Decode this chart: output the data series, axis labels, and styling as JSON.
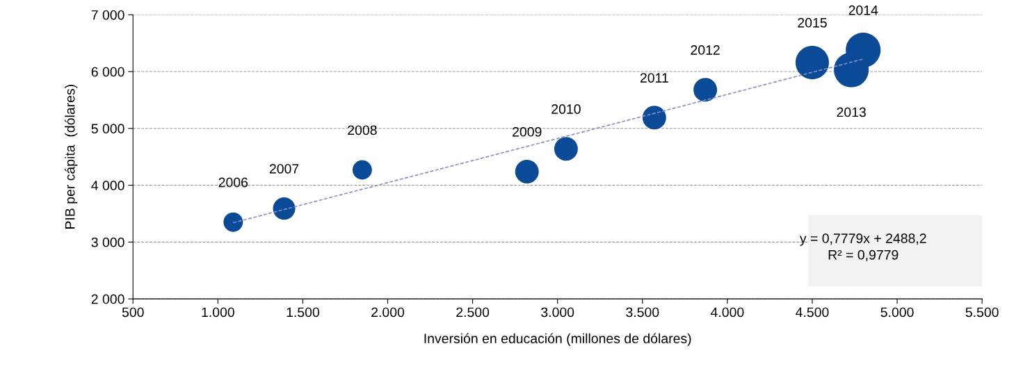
{
  "chart_data": {
    "type": "bubble",
    "xlabel": "Inversión en educación (millones de dólares)",
    "ylabel": "PIB per cápita  (dólares)",
    "xlim": [
      500,
      5500
    ],
    "xticks": [
      {
        "value": 500,
        "label": "500"
      },
      {
        "value": 1000,
        "label": "1.000"
      },
      {
        "value": 1500,
        "label": "1.500"
      },
      {
        "value": 2000,
        "label": "2.000"
      },
      {
        "value": 2500,
        "label": "2.500"
      },
      {
        "value": 3000,
        "label": "3.000"
      },
      {
        "value": 3500,
        "label": "3.500"
      },
      {
        "value": 4000,
        "label": "4.000"
      },
      {
        "value": 4500,
        "label": "4.500"
      },
      {
        "value": 5000,
        "label": "5.000"
      },
      {
        "value": 5500,
        "label": "5.500"
      }
    ],
    "ylim": [
      2000,
      7000
    ],
    "yticks": [
      {
        "value": 2000,
        "label": "2 000"
      },
      {
        "value": 3000,
        "label": "3 000"
      },
      {
        "value": 4000,
        "label": "4 000"
      },
      {
        "value": 5000,
        "label": "5 000"
      },
      {
        "value": 6000,
        "label": "6 000"
      },
      {
        "value": 7000,
        "label": "7 000"
      }
    ],
    "grid": "y",
    "series": [
      {
        "color": "#0a4a96",
        "x": [
          1090,
          1390,
          1850,
          2820,
          3050,
          3570,
          3870,
          4730,
          4800,
          4500
        ],
        "values": [
          3350,
          3590,
          4270,
          4240,
          4640,
          5190,
          5680,
          6030,
          6380,
          6160
        ],
        "sizes": [
          0.31,
          0.41,
          0.31,
          0.46,
          0.46,
          0.46,
          0.46,
          1,
          1,
          0.92
        ]
      },
      {
        "type": "line",
        "color": "#8a8fc8",
        "line_style": "dashed",
        "x": [
          1090,
          4800
        ],
        "values": [
          3340,
          6220
        ]
      }
    ],
    "annotations": [
      {
        "text": "2006",
        "x": 1090,
        "y": 3350
      },
      {
        "text": "2007",
        "x": 1390,
        "y": 3590
      },
      {
        "text": "2008",
        "x": 1850,
        "y": 4270
      },
      {
        "text": "2009",
        "x": 2820,
        "y": 4240
      },
      {
        "text": "2010",
        "x": 3050,
        "y": 4640
      },
      {
        "text": "2011",
        "x": 3570,
        "y": 5190
      },
      {
        "text": "2012",
        "x": 3870,
        "y": 5680
      },
      {
        "text": "2013",
        "x": 4730,
        "y": 6030
      },
      {
        "text": "2014",
        "x": 4800,
        "y": 6380
      },
      {
        "text": "2015",
        "x": 4500,
        "y": 6160
      },
      "y = 0,7779x + 2488,2\nR² = 0,9779"
    ]
  }
}
